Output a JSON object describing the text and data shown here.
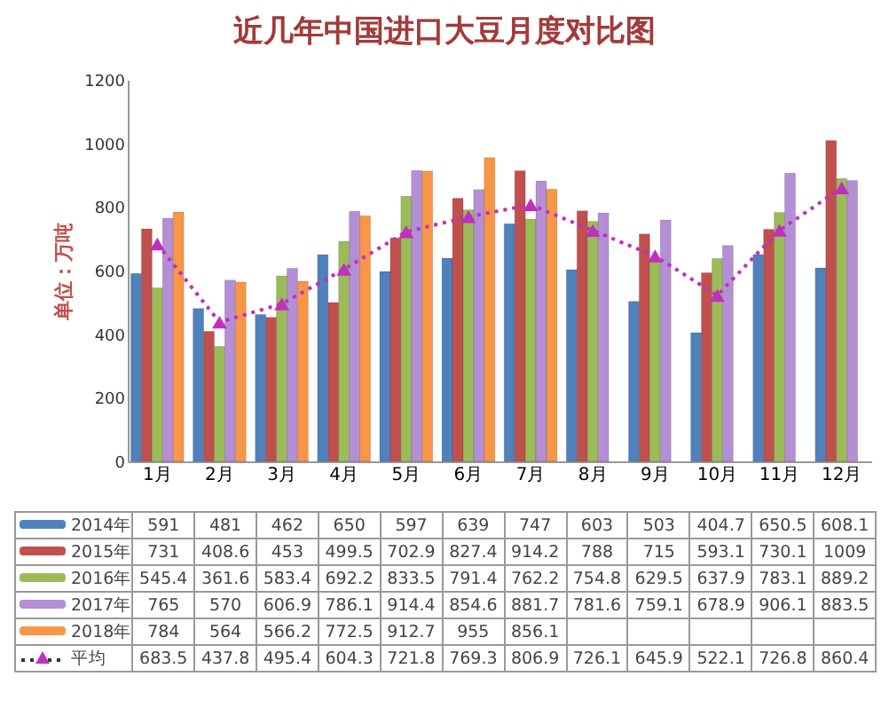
{
  "chart_data": {
    "type": "bar",
    "title": "近几年中国进口大豆月度对比图",
    "ylabel": "单位：万吨",
    "categories": [
      "1月",
      "2月",
      "3月",
      "4月",
      "5月",
      "6月",
      "7月",
      "8月",
      "9月",
      "10月",
      "11月",
      "12月"
    ],
    "series": [
      {
        "name": "2014年",
        "color": "#4f81bd",
        "values": [
          591,
          481,
          462,
          650,
          597,
          639,
          747,
          603,
          503,
          404.7,
          650.5,
          608.1
        ]
      },
      {
        "name": "2015年",
        "color": "#c0504d",
        "values": [
          731,
          408.6,
          453,
          499.5,
          702.9,
          827.4,
          914.2,
          788,
          715,
          593.1,
          730.1,
          1009
        ]
      },
      {
        "name": "2016年",
        "color": "#9bbb59",
        "values": [
          545.4,
          361.6,
          583.4,
          692.2,
          833.5,
          791.4,
          762.2,
          754.8,
          629.5,
          637.9,
          783.1,
          889.2
        ]
      },
      {
        "name": "2017年",
        "color": "#b48fd6",
        "values": [
          765,
          570,
          606.9,
          786.1,
          914.4,
          854.6,
          881.7,
          781.6,
          759.1,
          678.9,
          906.1,
          883.5
        ]
      },
      {
        "name": "2018年",
        "color": "#f79646",
        "values": [
          784,
          564,
          566.2,
          772.5,
          912.7,
          955,
          856.1,
          null,
          null,
          null,
          null,
          null
        ]
      },
      {
        "name": "平均",
        "type": "line",
        "color": "#c030c0",
        "values": [
          683.5,
          437.8,
          495.4,
          604.3,
          721.8,
          769.3,
          806.9,
          726.1,
          645.9,
          522.1,
          726.8,
          860.4
        ]
      }
    ],
    "ylim": [
      0,
      1200
    ],
    "yticks": [
      0,
      200,
      400,
      600,
      800,
      1000,
      1200
    ],
    "marker": "triangle",
    "line_style": "dotted",
    "data_labels": true,
    "legend": "bottom"
  }
}
